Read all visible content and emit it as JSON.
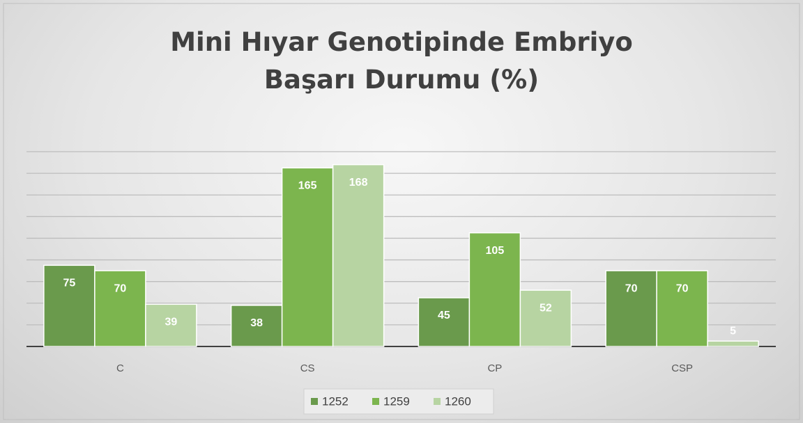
{
  "chart_data": {
    "type": "bar",
    "title": "Mini Hıyar Genotipinde Embriyo Başarı Durumu (%)",
    "categories": [
      "C",
      "CS",
      "CP",
      "CSP"
    ],
    "series": [
      {
        "name": "1252",
        "color": "#6a9a4c",
        "values": [
          75,
          38,
          45,
          70
        ]
      },
      {
        "name": "1259",
        "color": "#7cb54e",
        "values": [
          70,
          165,
          105,
          70
        ]
      },
      {
        "name": "1260",
        "color": "#b7d4a2",
        "values": [
          39,
          168,
          52,
          5
        ]
      }
    ],
    "ylim": [
      0,
      180
    ],
    "yticks": [
      0,
      20,
      40,
      60,
      80,
      100,
      120,
      140,
      160,
      180
    ],
    "grid": true
  }
}
